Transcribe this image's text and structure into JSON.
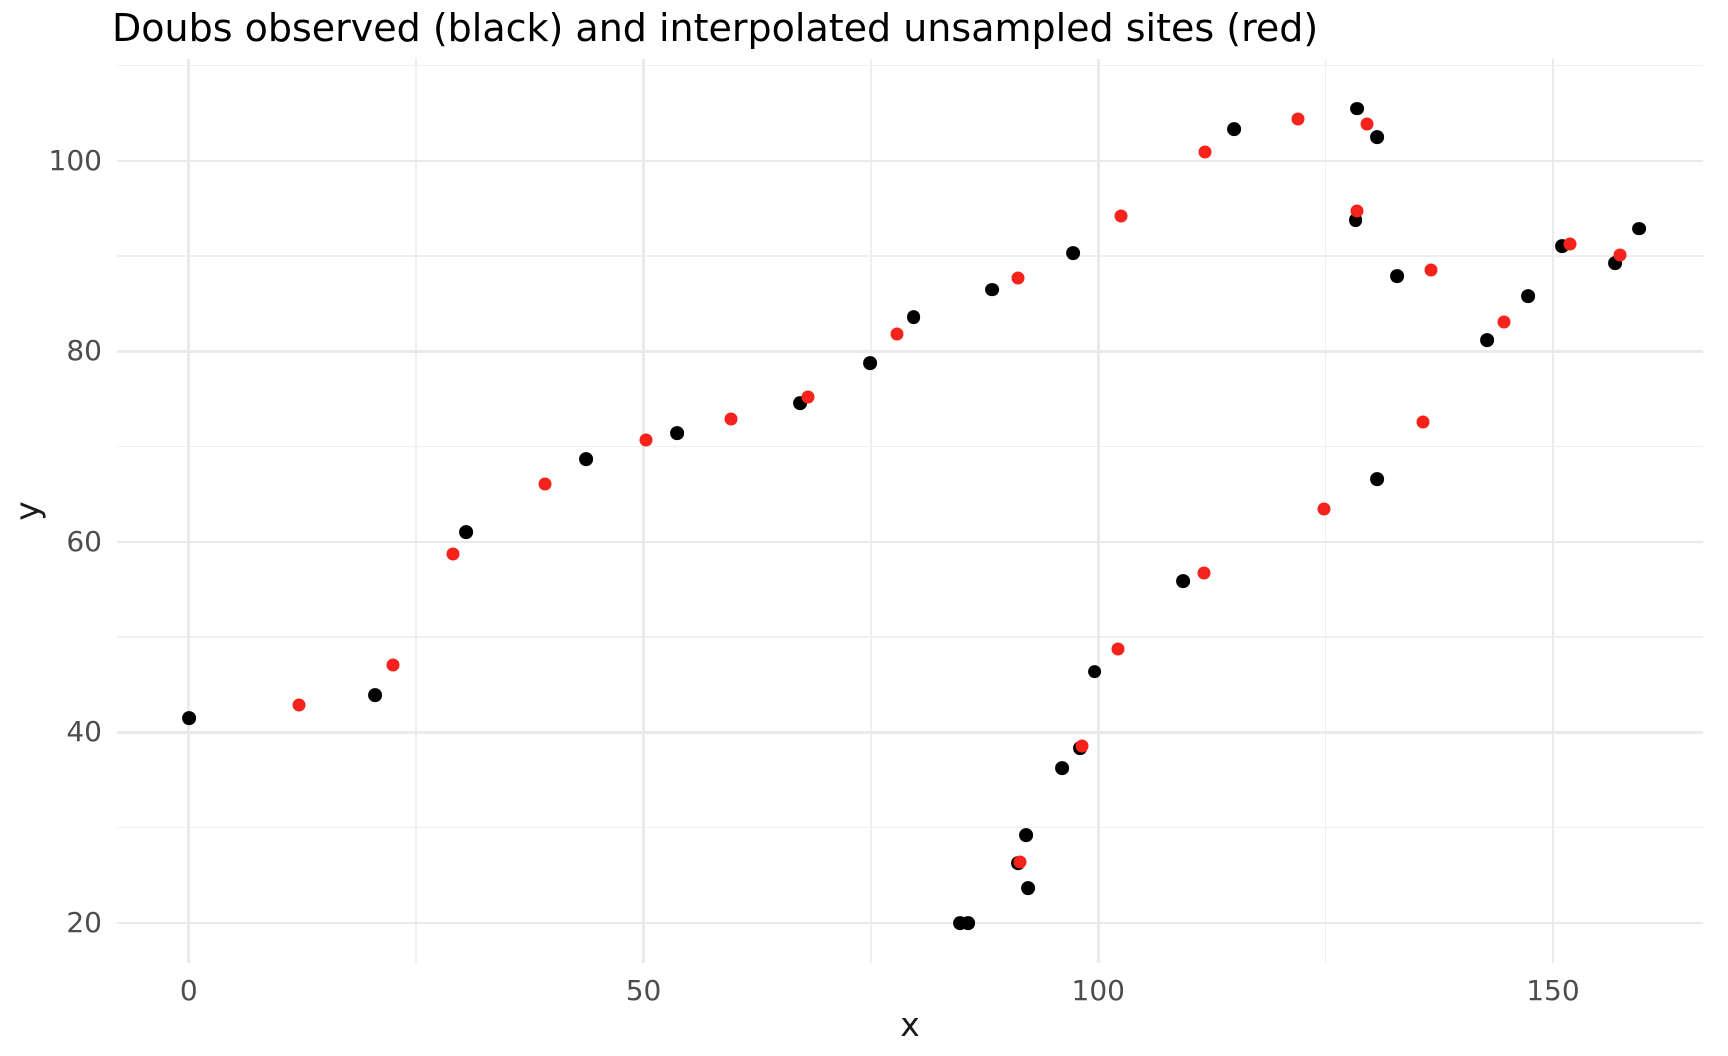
{
  "figure": {
    "title": "Doubs observed (black) and interpolated unsampled sites (red)"
  },
  "chart_data": {
    "type": "scatter",
    "title": "Doubs observed (black) and interpolated unsampled sites (red)",
    "xlabel": "x",
    "ylabel": "y",
    "xlim": [
      -7.9,
      166.5
    ],
    "ylim": [
      15.8,
      110.7
    ],
    "grid": "on",
    "legend": "none",
    "x_major_ticks": [
      0,
      50,
      100,
      150
    ],
    "x_tick_labels": [
      "0",
      "50",
      "100",
      "150"
    ],
    "y_major_ticks": [
      20,
      40,
      60,
      80,
      100
    ],
    "y_tick_labels": [
      "20",
      "40",
      "60",
      "80",
      "100"
    ],
    "x_minor_gridlines": [
      25,
      75,
      125
    ],
    "y_minor_gridlines": [
      30,
      50,
      70,
      90,
      110
    ],
    "colors": {
      "observed": "#000000",
      "interpolated": "#f5231c",
      "grid_major": "#eaeaea",
      "grid_minor": "#efefef",
      "tick_text": "#4d4d4d"
    },
    "series": [
      {
        "name": "observed",
        "label": "Doubs observed (black)",
        "color": "#000000",
        "marker_size_px": 13.8,
        "points": [
          [
            0,
            41.5
          ],
          [
            20.5,
            43.9
          ],
          [
            30.5,
            61.0
          ],
          [
            43.7,
            68.7
          ],
          [
            53.7,
            71.4
          ],
          [
            67.2,
            74.6
          ],
          [
            74.9,
            78.8
          ],
          [
            79.7,
            83.6
          ],
          [
            88.3,
            86.5
          ],
          [
            97.2,
            90.3
          ],
          [
            114.9,
            103.3
          ],
          [
            128.5,
            105.5
          ],
          [
            130.7,
            102.5
          ],
          [
            128.3,
            93.8
          ],
          [
            132.9,
            87.9
          ],
          [
            142.8,
            81.2
          ],
          [
            147.3,
            85.8
          ],
          [
            151.0,
            91.1
          ],
          [
            156.8,
            89.3
          ],
          [
            159.5,
            92.9
          ],
          [
            130.7,
            66.6
          ],
          [
            109.3,
            55.9
          ],
          [
            99.6,
            46.4
          ],
          [
            98.0,
            38.4
          ],
          [
            96.0,
            36.3
          ],
          [
            92.1,
            29.2
          ],
          [
            91.2,
            26.3
          ],
          [
            92.3,
            23.7
          ],
          [
            85.7,
            20.0
          ],
          [
            84.8,
            20.0
          ]
        ]
      },
      {
        "name": "interpolated",
        "label": "interpolated unsampled sites (red)",
        "color": "#f5231c",
        "marker_size_px": 13.0,
        "points": [
          [
            12.1,
            42.9
          ],
          [
            22.5,
            47.1
          ],
          [
            29.1,
            58.7
          ],
          [
            39.2,
            66.1
          ],
          [
            50.3,
            70.7
          ],
          [
            59.6,
            72.9
          ],
          [
            68.1,
            75.2
          ],
          [
            77.9,
            81.8
          ],
          [
            91.2,
            87.7
          ],
          [
            102.5,
            94.2
          ],
          [
            111.7,
            100.9
          ],
          [
            122.0,
            104.4
          ],
          [
            129.6,
            103.9
          ],
          [
            128.5,
            94.7
          ],
          [
            136.6,
            88.6
          ],
          [
            144.6,
            83.1
          ],
          [
            151.9,
            91.3
          ],
          [
            157.4,
            90.1
          ],
          [
            135.7,
            72.6
          ],
          [
            124.8,
            63.5
          ],
          [
            111.6,
            56.7
          ],
          [
            102.2,
            48.8
          ],
          [
            98.2,
            38.6
          ],
          [
            91.4,
            26.4
          ]
        ]
      }
    ]
  }
}
